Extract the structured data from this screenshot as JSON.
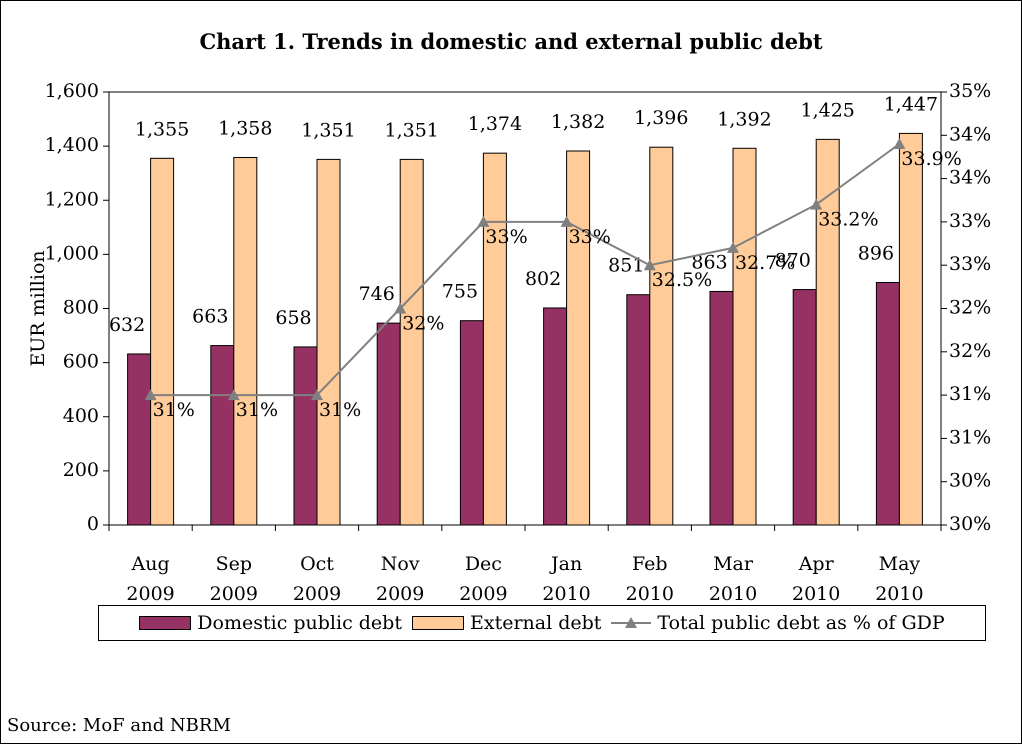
{
  "chart_data": {
    "type": "bar_line",
    "title": "Chart 1. Trends in domestic and external public debt",
    "y_label": "EUR million",
    "source": "Source: MoF and NBRM",
    "categories": [
      "Aug 2009",
      "Sep 2009",
      "Oct 2009",
      "Nov 2009",
      "Dec 2009",
      "Jan 2010",
      "Feb 2010",
      "Mar 2010",
      "Apr 2010",
      "May 2010"
    ],
    "series": [
      {
        "name": "Domestic public debt",
        "color": "#953163",
        "type": "bar",
        "values": [
          632,
          663,
          658,
          746,
          755,
          802,
          851,
          863,
          870,
          896
        ]
      },
      {
        "name": "External debt",
        "color": "#ffcc99",
        "type": "bar",
        "values": [
          1355,
          1358,
          1351,
          1351,
          1374,
          1382,
          1396,
          1392,
          1425,
          1447
        ],
        "value_labels": [
          "1,355",
          "1,358",
          "1,351",
          "1,351",
          "1,374",
          "1,382",
          "1,396",
          "1,392",
          "1,425",
          "1,447"
        ]
      },
      {
        "name": "Total public debt as % of GDP",
        "color": "#808080",
        "type": "line",
        "axis": "y2",
        "values": [
          31,
          31,
          31,
          32,
          33,
          33,
          32.5,
          32.7,
          33.2,
          33.9
        ],
        "value_labels": [
          "31%",
          "31%",
          "31%",
          "32%",
          "33%",
          "33%",
          "32.5%",
          "32.7%",
          "33.2%",
          "33.9%"
        ]
      }
    ],
    "ylim": [
      0,
      1600
    ],
    "yticks": [
      0,
      200,
      400,
      600,
      800,
      {
        "value": 1000,
        "label": "1,000"
      },
      {
        "value": 1200,
        "label": "1,200"
      },
      {
        "value": 1400,
        "label": "1,400"
      },
      {
        "value": 1600,
        "label": "1,600"
      }
    ],
    "y2lim": [
      29.5,
      34.5
    ],
    "y2ticks": [
      {
        "value": 29.5,
        "label": "30%"
      },
      {
        "value": 30,
        "label": "30%"
      },
      {
        "value": 30.5,
        "label": "31%"
      },
      {
        "value": 31,
        "label": "31%"
      },
      {
        "value": 31.5,
        "label": "32%"
      },
      {
        "value": 32,
        "label": "32%"
      },
      {
        "value": 32.5,
        "label": "33%"
      },
      {
        "value": 33,
        "label": "33%"
      },
      {
        "value": 33.5,
        "label": "34%"
      },
      {
        "value": 34,
        "label": "34%"
      },
      {
        "value": 34.5,
        "label": "35%"
      }
    ],
    "legend": "bottom"
  }
}
